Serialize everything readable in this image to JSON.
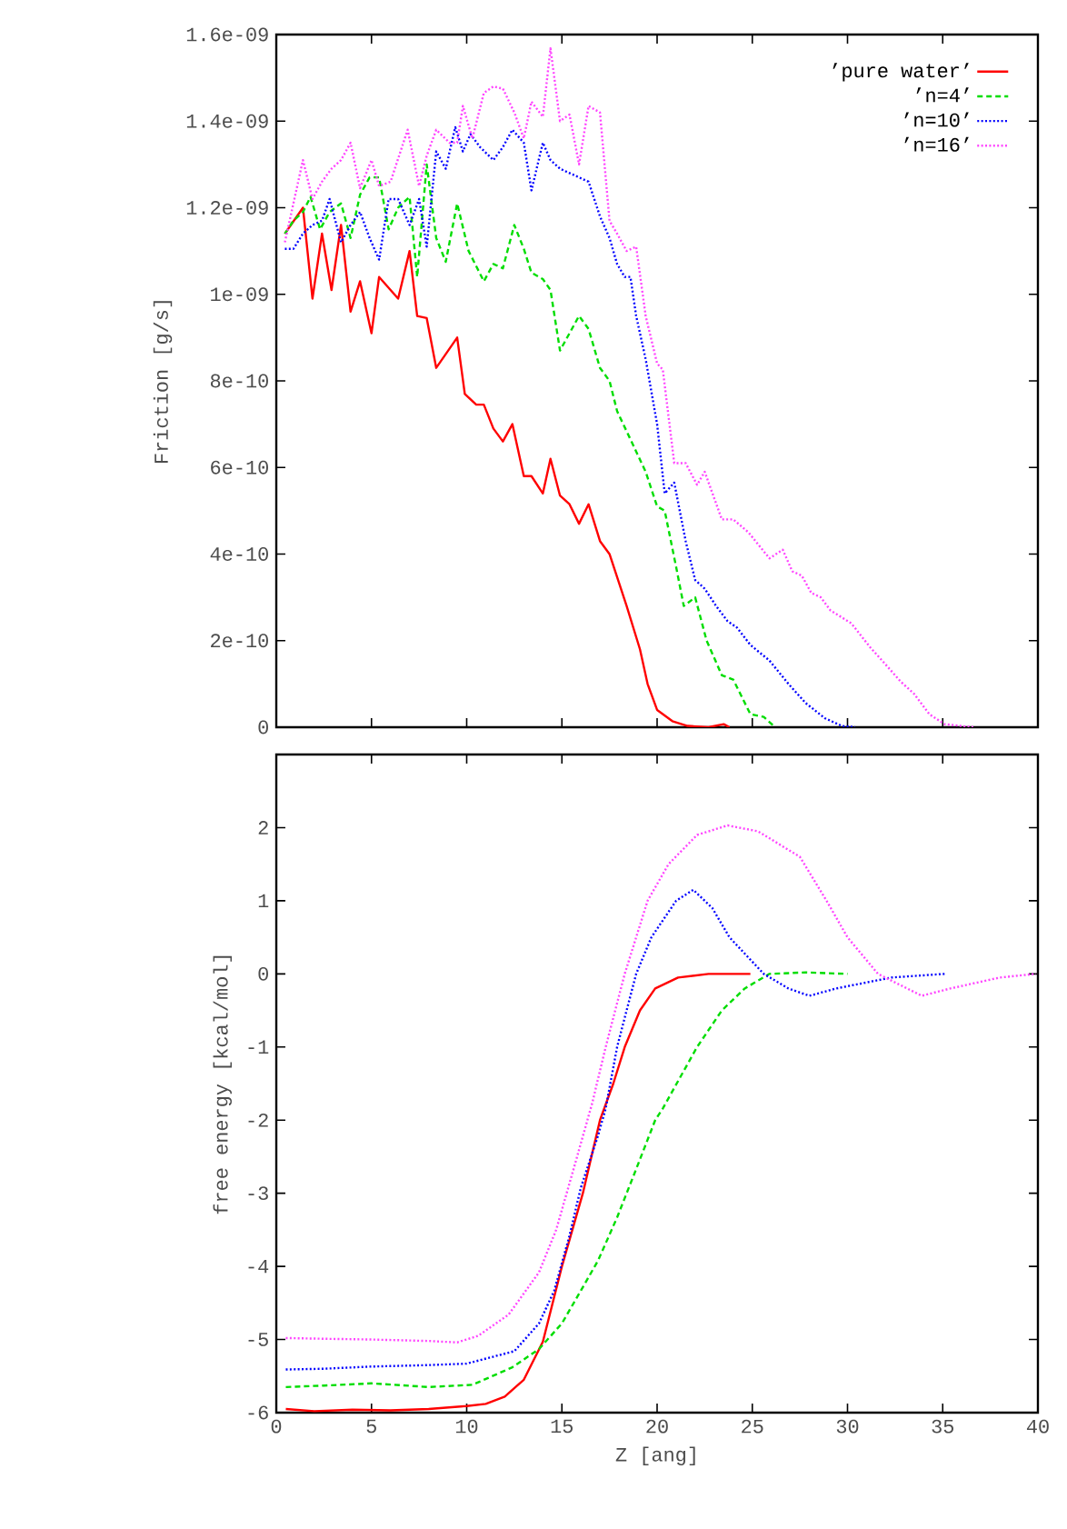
{
  "chart_data": [
    {
      "type": "line",
      "ylabel": "Friction [g/s]",
      "xlim": [
        0,
        40
      ],
      "ylim": [
        0,
        1.6e-09
      ],
      "legend": "top right",
      "tick_labels": "y",
      "xticks": [
        {
          "value": 0,
          "label": null
        },
        {
          "value": 5,
          "label": null
        },
        {
          "value": 10,
          "label": null
        },
        {
          "value": 15,
          "label": null
        },
        {
          "value": 20,
          "label": null
        },
        {
          "value": 25,
          "label": null
        },
        {
          "value": 30,
          "label": null
        },
        {
          "value": 35,
          "label": null
        },
        {
          "value": 40,
          "label": null
        }
      ],
      "yticks": [
        0,
        {
          "value": 2e-10,
          "label": "2e-10"
        },
        {
          "value": 4e-10,
          "label": "4e-10"
        },
        {
          "value": 6e-10,
          "label": "6e-10"
        },
        {
          "value": 8e-10,
          "label": "8e-10"
        },
        {
          "value": 1e-09,
          "label": "1e-09"
        },
        {
          "value": 1.2e-09,
          "label": "1.2e-09"
        },
        {
          "value": 1.4e-09,
          "label": "1.4e-09"
        },
        {
          "value": 1.6e-09,
          "label": "1.6e-09"
        }
      ],
      "series": [
        {
          "name": "’pure water’",
          "color": "#ff0000",
          "line_style": "solid",
          "x": [
            0.45,
            1.4,
            1.9,
            2.4,
            2.9,
            3.4,
            3.9,
            4.4,
            5.0,
            5.4,
            6.4,
            7.0,
            7.4,
            7.9,
            8.4,
            9.5,
            9.9,
            10.5,
            10.9,
            11.4,
            11.9,
            12.4,
            13.0,
            13.4,
            14.0,
            14.4,
            14.9,
            15.4,
            15.9,
            16.4,
            17.0,
            17.5,
            18.4,
            19.1,
            19.5,
            20.0,
            20.8,
            21.6,
            22.7,
            23.5,
            23.8
          ],
          "values": [
            1.14e-09,
            1.2e-09,
            9.9e-10,
            1.14e-09,
            1.01e-09,
            1.16e-09,
            9.6e-10,
            1.03e-09,
            9.1e-10,
            1.04e-09,
            9.9e-10,
            1.1e-09,
            9.5e-10,
            9.45e-10,
            8.3e-10,
            9e-10,
            7.7e-10,
            7.45e-10,
            7.45e-10,
            6.9e-10,
            6.6e-10,
            7e-10,
            5.8e-10,
            5.8e-10,
            5.4e-10,
            6.2e-10,
            5.35e-10,
            5.15e-10,
            4.7e-10,
            5.15e-10,
            4.3e-10,
            4e-10,
            2.8e-10,
            1.8e-10,
            1e-10,
            4e-11,
            1.4e-11,
            3e-12,
            0,
            7e-12,
            0
          ]
        },
        {
          "name": "’n=4’",
          "color": "#00dd00",
          "line_style": "dashed",
          "x": [
            0.45,
            0.9,
            1.4,
            1.8,
            2.3,
            2.8,
            3.4,
            3.9,
            4.4,
            4.9,
            5.4,
            5.9,
            6.4,
            7.0,
            7.4,
            7.9,
            8.4,
            8.9,
            9.5,
            10.1,
            10.9,
            11.4,
            11.9,
            12.5,
            13.0,
            13.4,
            14.0,
            14.4,
            14.9,
            15.4,
            15.9,
            16.4,
            17.0,
            17.5,
            17.9,
            18.6,
            19.4,
            20.0,
            20.4,
            21.0,
            21.4,
            22.0,
            22.6,
            23.4,
            24.0,
            24.9,
            25.6,
            26.2
          ],
          "values": [
            1.14e-09,
            1.17e-09,
            1.19e-09,
            1.225e-09,
            1.15e-09,
            1.19e-09,
            1.21e-09,
            1.13e-09,
            1.23e-09,
            1.27e-09,
            1.27e-09,
            1.15e-09,
            1.2e-09,
            1.225e-09,
            1.04e-09,
            1.3e-09,
            1.13e-09,
            1.075e-09,
            1.21e-09,
            1.1e-09,
            1.03e-09,
            1.07e-09,
            1.06e-09,
            1.16e-09,
            1.105e-09,
            1.05e-09,
            1.035e-09,
            1.01e-09,
            8.7e-10,
            9.1e-10,
            9.5e-10,
            9.2e-10,
            8.3e-10,
            8e-10,
            7.3e-10,
            6.65e-10,
            5.9e-10,
            5.1e-10,
            5e-10,
            3.7e-10,
            2.8e-10,
            3e-10,
            2e-10,
            1.2e-10,
            1.1e-10,
            3e-11,
            2.4e-11,
            0
          ]
        },
        {
          "name": "’n=10’",
          "color": "#0000ff",
          "line_style": "dotted",
          "x": [
            0.45,
            0.9,
            1.4,
            1.9,
            2.4,
            2.8,
            3.4,
            3.9,
            4.4,
            4.9,
            5.4,
            5.9,
            6.4,
            7.0,
            7.5,
            7.9,
            8.4,
            8.9,
            9.4,
            9.8,
            10.2,
            10.7,
            11.4,
            11.9,
            12.4,
            13.0,
            13.4,
            14.0,
            14.4,
            14.9,
            15.4,
            15.9,
            16.4,
            17.0,
            17.5,
            17.9,
            18.3,
            18.6,
            18.9,
            19.4,
            20.0,
            20.4,
            20.9,
            21.5,
            22.0,
            22.5,
            23.1,
            23.7,
            24.2,
            24.9,
            25.9,
            26.9,
            27.8,
            28.8,
            29.7,
            30.4
          ],
          "values": [
            1.105e-09,
            1.105e-09,
            1.14e-09,
            1.16e-09,
            1.17e-09,
            1.22e-09,
            1.12e-09,
            1.16e-09,
            1.19e-09,
            1.13e-09,
            1.08e-09,
            1.22e-09,
            1.22e-09,
            1.16e-09,
            1.22e-09,
            1.11e-09,
            1.33e-09,
            1.29e-09,
            1.386e-09,
            1.33e-09,
            1.37e-09,
            1.34e-09,
            1.31e-09,
            1.34e-09,
            1.38e-09,
            1.35e-09,
            1.24e-09,
            1.35e-09,
            1.31e-09,
            1.29e-09,
            1.28e-09,
            1.27e-09,
            1.26e-09,
            1.18e-09,
            1.13e-09,
            1.07e-09,
            1.04e-09,
            1.04e-09,
            9.5e-10,
            8.5e-10,
            7e-10,
            5.4e-10,
            5.65e-10,
            4.3e-10,
            3.4e-10,
            3.2e-10,
            2.8e-10,
            2.45e-10,
            2.3e-10,
            1.9e-10,
            1.54e-10,
            1e-10,
            5.6e-11,
            2.1e-11,
            3e-12,
            0
          ]
        },
        {
          "name": "’n=16’",
          "color": "#ff44ff",
          "line_style": "dotted",
          "x": [
            0.45,
            0.9,
            1.4,
            1.9,
            2.4,
            2.9,
            3.4,
            3.9,
            4.4,
            5.0,
            5.4,
            6.0,
            6.9,
            7.5,
            7.9,
            8.4,
            9.1,
            9.5,
            9.8,
            10.3,
            10.9,
            11.4,
            11.9,
            12.5,
            13.0,
            13.4,
            14.0,
            14.4,
            14.9,
            15.4,
            15.9,
            16.4,
            17.0,
            17.5,
            17.9,
            18.4,
            18.9,
            19.4,
            20.0,
            20.3,
            20.9,
            21.5,
            22.1,
            22.5,
            23.4,
            24.0,
            24.8,
            25.9,
            26.6,
            27.1,
            27.6,
            28.1,
            28.6,
            29.1,
            30.2,
            31.2,
            32.1,
            32.8,
            33.5,
            34.3,
            35.1,
            36.6
          ],
          "values": [
            1.12e-09,
            1.21e-09,
            1.31e-09,
            1.22e-09,
            1.26e-09,
            1.29e-09,
            1.31e-09,
            1.35e-09,
            1.245e-09,
            1.31e-09,
            1.25e-09,
            1.26e-09,
            1.38e-09,
            1.25e-09,
            1.32e-09,
            1.38e-09,
            1.35e-09,
            1.35e-09,
            1.435e-09,
            1.36e-09,
            1.465e-09,
            1.48e-09,
            1.475e-09,
            1.42e-09,
            1.36e-09,
            1.445e-09,
            1.41e-09,
            1.568e-09,
            1.4e-09,
            1.415e-09,
            1.3e-09,
            1.435e-09,
            1.42e-09,
            1.17e-09,
            1.14e-09,
            1.1e-09,
            1.11e-09,
            9.5e-10,
            8.4e-10,
            8.26e-10,
            6.1e-10,
            6.1e-10,
            5.6e-10,
            5.9e-10,
            4.8e-10,
            4.8e-10,
            4.5e-10,
            3.9e-10,
            4.1e-10,
            3.6e-10,
            3.5e-10,
            3.1e-10,
            3e-10,
            2.7e-10,
            2.4e-10,
            1.84e-10,
            1.4e-10,
            1.05e-10,
            7.7e-11,
            3e-11,
            7e-12,
            0
          ]
        }
      ]
    },
    {
      "type": "line",
      "xlabel": "Z [ang]",
      "ylabel": "free energy [kcal/mol]",
      "xlim": [
        0,
        40
      ],
      "ylim": [
        -6,
        3
      ],
      "xticks": [
        0,
        5,
        10,
        15,
        20,
        25,
        30,
        35,
        40
      ],
      "yticks": [
        -6,
        -5,
        -4,
        -3,
        -2,
        -1,
        0,
        1,
        2
      ],
      "series": [
        {
          "color": "#ff0000",
          "line_style": "solid",
          "x": [
            0.5,
            2,
            4,
            6,
            8,
            10,
            11,
            12,
            13,
            14,
            15,
            16.1,
            17.0,
            17.7,
            18.3,
            19.1,
            19.9,
            21.1,
            22.7,
            24.9
          ],
          "values": [
            -5.95,
            -5.98,
            -5.96,
            -5.97,
            -5.95,
            -5.91,
            -5.88,
            -5.78,
            -5.55,
            -5.03,
            -4.0,
            -3.0,
            -2.0,
            -1.5,
            -1.0,
            -0.5,
            -0.2,
            -0.05,
            0,
            0
          ]
        },
        {
          "color": "#00dd00",
          "line_style": "dashed",
          "x": [
            0.5,
            2.5,
            5,
            8,
            10.3,
            12.4,
            13.8,
            15.0,
            16.0,
            16.9,
            17.9,
            18.9,
            19.9,
            20.3,
            22.1,
            23.4,
            24.6,
            25.9,
            27.8,
            30.0
          ],
          "values": [
            -5.65,
            -5.63,
            -5.6,
            -5.65,
            -5.62,
            -5.38,
            -5.13,
            -4.78,
            -4.33,
            -3.92,
            -3.33,
            -2.67,
            -2.0,
            -1.84,
            -1.0,
            -0.5,
            -0.2,
            0,
            0.02,
            0
          ]
        },
        {
          "color": "#0000ff",
          "line_style": "dotted",
          "x": [
            0.5,
            2.5,
            5,
            8,
            10,
            12.5,
            13.8,
            14.6,
            15.4,
            16.0,
            16.9,
            17.3,
            17.9,
            18.9,
            19.7,
            21.0,
            21.9,
            22.9,
            23.8,
            25.6,
            26.9,
            28.0,
            29.4,
            32.3,
            35.1
          ],
          "values": [
            -5.41,
            -5.4,
            -5.37,
            -5.35,
            -5.33,
            -5.16,
            -4.78,
            -4.33,
            -3.58,
            -2.92,
            -2.21,
            -1.84,
            -1.0,
            0,
            0.5,
            1.0,
            1.15,
            0.9,
            0.5,
            0,
            -0.2,
            -0.3,
            -0.2,
            -0.05,
            0
          ]
        },
        {
          "color": "#ff44ff",
          "line_style": "dotted",
          "x": [
            0.5,
            2.5,
            5,
            8,
            9.5,
            10.6,
            12.2,
            13.8,
            14.7,
            15.7,
            16.6,
            17.3,
            18.3,
            19.5,
            20.6,
            22.1,
            23.7,
            25.3,
            27.5,
            28.9,
            30.0,
            31.6,
            33.9,
            35.4,
            38.0,
            39.9
          ],
          "values": [
            -4.98,
            -4.99,
            -5.0,
            -5.02,
            -5.04,
            -4.95,
            -4.66,
            -4.08,
            -3.5,
            -2.59,
            -1.76,
            -1.0,
            0,
            1.0,
            1.5,
            1.9,
            2.03,
            1.95,
            1.6,
            1.0,
            0.5,
            0,
            -0.3,
            -0.2,
            -0.05,
            0
          ]
        }
      ]
    }
  ]
}
